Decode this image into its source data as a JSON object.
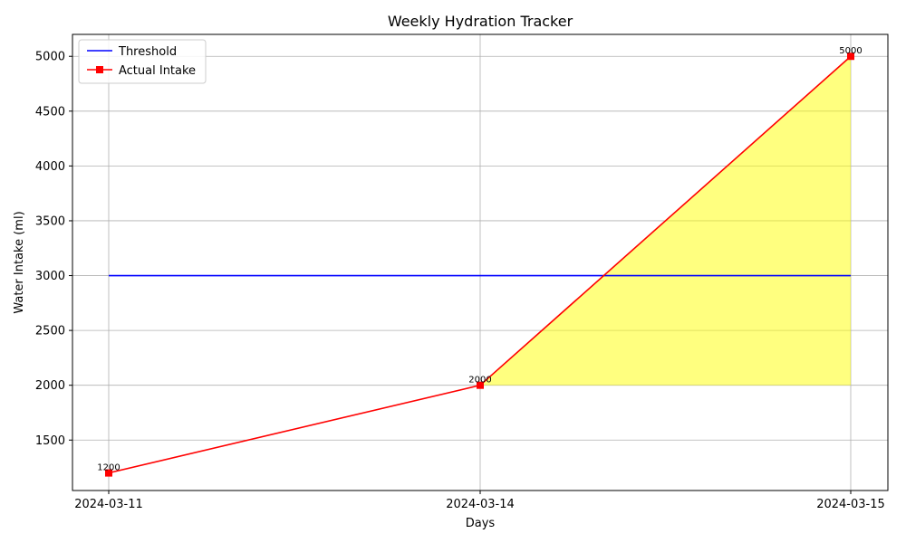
{
  "chart_data": {
    "type": "line",
    "title": "Weekly Hydration Tracker",
    "xlabel": "Days",
    "ylabel": "Water Intake (ml)",
    "categories": [
      "2024-03-11",
      "2024-03-14",
      "2024-03-15"
    ],
    "ylim": [
      1040,
      5200
    ],
    "yticks": [
      1500,
      2000,
      2500,
      3000,
      3500,
      4000,
      4500,
      5000
    ],
    "grid": true,
    "legend_position": "top-left",
    "series": [
      {
        "name": "Threshold",
        "values": [
          3000,
          3000,
          3000
        ],
        "color": "#0000ff",
        "marker": "none"
      },
      {
        "name": "Actual Intake",
        "values": [
          1200,
          2000,
          5000
        ],
        "color": "#ff0000",
        "marker": "square"
      }
    ],
    "data_labels": [
      "1200",
      "2000",
      "5000"
    ],
    "fill": {
      "from_index": 1,
      "to_index": 2,
      "baseline": 2000,
      "color": "#ffff00",
      "opacity": 0.5
    }
  }
}
